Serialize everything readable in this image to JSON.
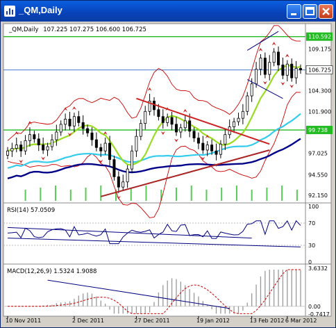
{
  "window": {
    "title": "_QM,Daily",
    "buttons": [
      "minimize",
      "maximize",
      "close"
    ]
  },
  "colors": {
    "background": "#ffffff",
    "candle": "#000000",
    "bollinger": "#cc0000",
    "ma_fast": "#99dd22",
    "ma_mid": "#33ccee",
    "ma_slow": "#000088",
    "fractal": "#cc2222",
    "volume": "#55cc55",
    "resistance_line": "#22bb22",
    "trend_down": "#cc2222",
    "trend_up": "#aa2222",
    "channel": "#000080",
    "rsi": "#000080",
    "macd_signal": "#cc0000",
    "macd_hist": "#999999"
  },
  "chart_data": [
    {
      "type": "candlestick",
      "label": "_QM,Daily",
      "ohlc_text": "107.225 107.275 106.600 106.725",
      "y_ticks": [
        "109.175",
        "106.725",
        "104.300",
        "101.900",
        "99.738",
        "97.025",
        "94.550",
        "92.150"
      ],
      "y_tick_values": [
        109.175,
        106.725,
        104.3,
        101.9,
        99.738,
        97.025,
        94.55,
        92.15
      ],
      "ylim": [
        91.5,
        111.7
      ],
      "price_markers": [
        {
          "text": "110.592",
          "value": 110.592,
          "kind": "resistance"
        },
        {
          "text": "106.725",
          "value": 106.725,
          "kind": "current"
        },
        {
          "text": "99.738",
          "value": 99.738,
          "kind": "support"
        }
      ],
      "x_labels": [
        "10 Nov 2011",
        "2 Dec 2011",
        "27 Dec 2011",
        "19 Jan 2012",
        "13 Feb 2012",
        "6 Mar 2012"
      ],
      "closes": [
        97.3,
        97.6,
        98.0,
        97.3,
        98.5,
        99.2,
        98.7,
        98.0,
        97.4,
        97.8,
        98.6,
        99.5,
        100.4,
        101.0,
        100.2,
        101.3,
        100.6,
        99.9,
        99.4,
        98.6,
        97.7,
        97.3,
        98.2,
        96.3,
        94.3,
        93.1,
        93.7,
        95.2,
        97.3,
        99.0,
        100.5,
        101.9,
        103.1,
        102.1,
        101.3,
        100.6,
        101.2,
        100.4,
        99.5,
        100.0,
        100.8,
        99.6,
        98.8,
        98.2,
        97.4,
        98.0,
        97.3,
        96.9,
        98.1,
        99.2,
        100.1,
        100.7,
        101.1,
        101.9,
        103.7,
        105.1,
        106.8,
        108.1,
        106.2,
        107.6,
        108.8,
        107.3,
        106.1,
        107.4,
        105.8,
        106.9,
        106.725
      ],
      "volume_bars": 19
    },
    {
      "type": "line",
      "label": "RSI(14) 57.0509",
      "y_ticks": [
        "100",
        "70",
        "30",
        "0"
      ],
      "y_tick_values": [
        100,
        70,
        30,
        0
      ],
      "ylim": [
        0,
        100
      ]
    },
    {
      "type": "line",
      "label": "MACD(12,26,9) 1.5324 1.9088",
      "y_ticks": [
        "3.6332",
        "0.00",
        "-0.7417"
      ],
      "y_tick_values": [
        3.6332,
        0,
        -0.7417
      ],
      "ylim": [
        -0.7417,
        3.6332
      ]
    }
  ]
}
